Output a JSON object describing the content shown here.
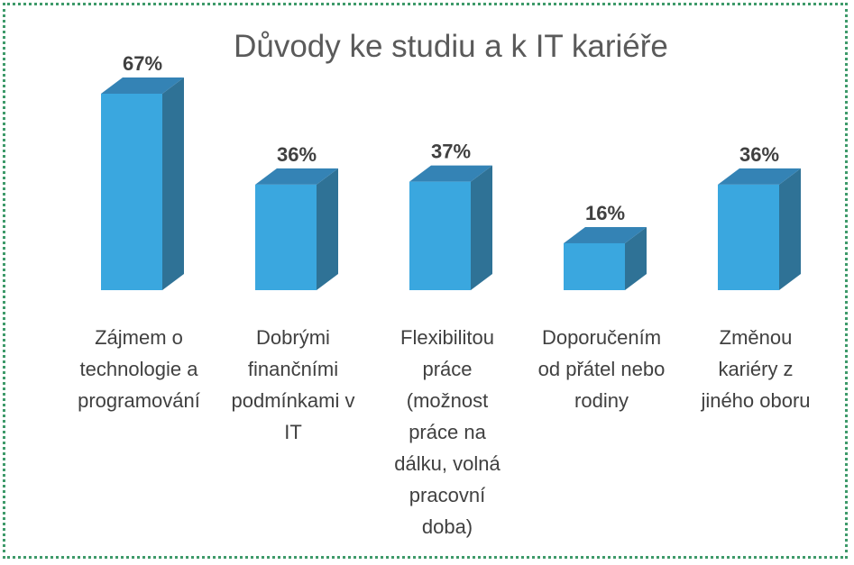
{
  "chart_data": {
    "type": "bar",
    "title": "Důvody ke studiu a k IT kariéře",
    "categories": [
      [
        "Zájmem o",
        "technologie a",
        "programování"
      ],
      [
        "Dobrými",
        "finančními",
        "podmínkami v",
        "IT"
      ],
      [
        "Flexibilitou",
        "práce",
        "(možnost",
        "práce na",
        "dálku, volná",
        "pracovní",
        "doba)"
      ],
      [
        "Doporučením",
        "od přátel nebo",
        "rodiny"
      ],
      [
        "Změnou",
        "kariéry z",
        "jiného oboru"
      ]
    ],
    "values": [
      67,
      36,
      37,
      16,
      36
    ],
    "value_labels": [
      "67%",
      "36%",
      "37%",
      "16%",
      "36%"
    ],
    "unit": "%",
    "ylim": [
      0,
      67
    ],
    "grid": false,
    "legend": "none",
    "colors": {
      "front": "#3aa7df",
      "side": "#2f7296",
      "top": "#3483b5"
    }
  }
}
